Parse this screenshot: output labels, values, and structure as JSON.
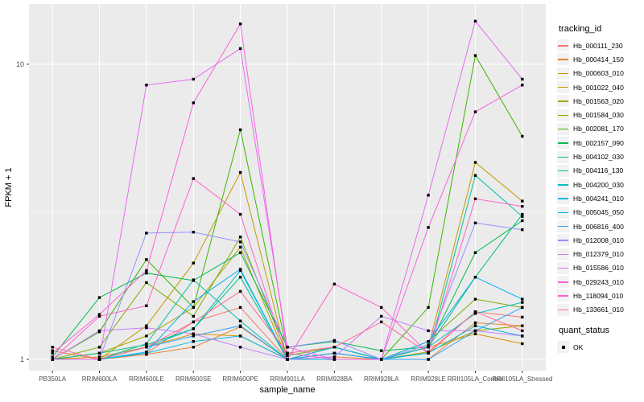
{
  "figure": {
    "background": "#FFFFFF",
    "panel_background": "#EBEBEB",
    "grid_color": "#FFFFFF",
    "axis_text_color": "#4D4D4D",
    "axis_title_color": "#000000",
    "marker_color": "#000000"
  },
  "chart_data": {
    "type": "line",
    "title": "",
    "xlabel": "sample_name",
    "ylabel": "FPKM + 1",
    "y_scale": "log10",
    "y_tick_labels": [
      "1",
      "10"
    ],
    "y_tick_values": [
      1,
      10
    ],
    "y_minor_gridlines": [
      3.1623
    ],
    "ylim": [
      0.916,
      16.0
    ],
    "grid": true,
    "legend_position": "right",
    "categories": [
      "PB350LA",
      "RRIM600LA",
      "RRIM600LE",
      "RRIM600SE",
      "RRIM600PE",
      "RRIM901LA",
      "RRIM928BA",
      "RRIM928LA",
      "RRIM928LE",
      "RRII105LA_Control",
      "RRII105LA_Stressed"
    ],
    "series": [
      {
        "name": "Hb_000111_230",
        "color": "#F8766D",
        "values": [
          1.07,
          1.0,
          1.05,
          1.34,
          1.5,
          1.0,
          1.05,
          1.0,
          1.06,
          1.45,
          1.39
        ]
      },
      {
        "name": "Hb_000414_150",
        "color": "#EA8331",
        "values": [
          1.0,
          1.0,
          1.04,
          1.1,
          1.29,
          1.0,
          1.02,
          1.0,
          1.0,
          1.33,
          1.3
        ]
      },
      {
        "name": "Hb_000603_010",
        "color": "#D89000",
        "values": [
          1.0,
          1.02,
          1.1,
          1.22,
          1.2,
          1.0,
          1.05,
          1.0,
          1.1,
          1.22,
          1.13
        ]
      },
      {
        "name": "Hb_001022_040",
        "color": "#C09B00",
        "values": [
          1.0,
          1.0,
          1.3,
          2.12,
          4.3,
          1.0,
          1.1,
          1.0,
          1.1,
          4.65,
          3.44
        ]
      },
      {
        "name": "Hb_001563_020",
        "color": "#A3A500",
        "values": [
          1.0,
          1.05,
          1.2,
          1.5,
          2.4,
          1.0,
          1.05,
          1.0,
          1.06,
          1.25,
          1.3
        ]
      },
      {
        "name": "Hb_001584_030",
        "color": "#7CAE00",
        "values": [
          1.0,
          1.1,
          1.82,
          1.4,
          2.6,
          1.03,
          1.1,
          1.0,
          1.15,
          1.6,
          1.5
        ]
      },
      {
        "name": "Hb_002081_170",
        "color": "#39B600",
        "values": [
          1.0,
          1.24,
          2.18,
          1.5,
          6.0,
          1.05,
          1.1,
          1.0,
          1.5,
          10.7,
          5.7
        ]
      },
      {
        "name": "Hb_002157_090",
        "color": "#00BB4E",
        "values": [
          1.02,
          1.62,
          1.96,
          1.85,
          2.3,
          1.1,
          1.15,
          1.07,
          1.1,
          2.3,
          2.95
        ]
      },
      {
        "name": "Hb_004102_030",
        "color": "#00BF7D",
        "values": [
          1.0,
          1.05,
          1.12,
          1.27,
          1.9,
          1.0,
          1.1,
          1.0,
          1.1,
          1.9,
          3.1
        ]
      },
      {
        "name": "Hb_004116_130",
        "color": "#00C1A3",
        "values": [
          1.0,
          1.0,
          1.13,
          1.86,
          1.35,
          1.0,
          1.05,
          1.0,
          1.05,
          4.2,
          3.05
        ]
      },
      {
        "name": "Hb_004200_030",
        "color": "#00BFC4",
        "values": [
          1.0,
          1.0,
          1.1,
          1.27,
          2.0,
          1.0,
          1.05,
          1.0,
          1.1,
          1.43,
          1.56
        ]
      },
      {
        "name": "Hb_004241_010",
        "color": "#00BAE0",
        "values": [
          1.0,
          1.0,
          1.05,
          1.15,
          1.2,
          1.0,
          1.0,
          1.0,
          1.05,
          1.3,
          1.2
        ]
      },
      {
        "name": "Hb_005045_050",
        "color": "#00B0F6",
        "values": [
          1.0,
          1.0,
          1.06,
          1.57,
          2.02,
          1.0,
          1.1,
          1.0,
          1.15,
          1.9,
          1.6
        ]
      },
      {
        "name": "Hb_006816_400",
        "color": "#35A2FF",
        "values": [
          1.0,
          1.0,
          1.1,
          1.2,
          1.3,
          1.0,
          1.05,
          1.0,
          1.0,
          1.25,
          1.5
        ]
      },
      {
        "name": "Hb_012008_010",
        "color": "#9590FF",
        "values": [
          1.0,
          1.0,
          2.68,
          2.7,
          2.5,
          1.1,
          1.16,
          1.0,
          1.12,
          2.9,
          2.75
        ]
      },
      {
        "name": "Hb_012379_010",
        "color": "#C77CFF",
        "values": [
          1.0,
          1.25,
          1.28,
          1.22,
          1.1,
          1.0,
          1.02,
          1.4,
          1.25,
          1.25,
          1.2
        ]
      },
      {
        "name": "Hb_015586_010",
        "color": "#E76BF3",
        "values": [
          1.0,
          1.0,
          8.5,
          8.9,
          11.3,
          1.1,
          1.0,
          1.0,
          3.6,
          14.0,
          8.9
        ]
      },
      {
        "name": "Hb_029243_010",
        "color": "#FA62DB",
        "values": [
          1.05,
          1.42,
          2.0,
          7.4,
          13.7,
          1.05,
          1.0,
          1.0,
          2.8,
          6.9,
          8.5
        ]
      },
      {
        "name": "Hb_118094_010",
        "color": "#FF61CC",
        "values": [
          1.0,
          1.4,
          1.52,
          4.1,
          3.1,
          1.0,
          1.8,
          1.5,
          1.05,
          3.5,
          3.3
        ]
      },
      {
        "name": "Hb_133661_010",
        "color": "#FF6A98",
        "values": [
          1.1,
          1.0,
          1.1,
          1.34,
          1.7,
          1.05,
          1.1,
          1.34,
          1.05,
          1.45,
          1.25
        ]
      }
    ],
    "legend": {
      "tracking_title": "tracking_id",
      "quant_title": "quant_status",
      "quant_items": [
        {
          "label": "OK",
          "marker": "black-square"
        }
      ]
    }
  }
}
